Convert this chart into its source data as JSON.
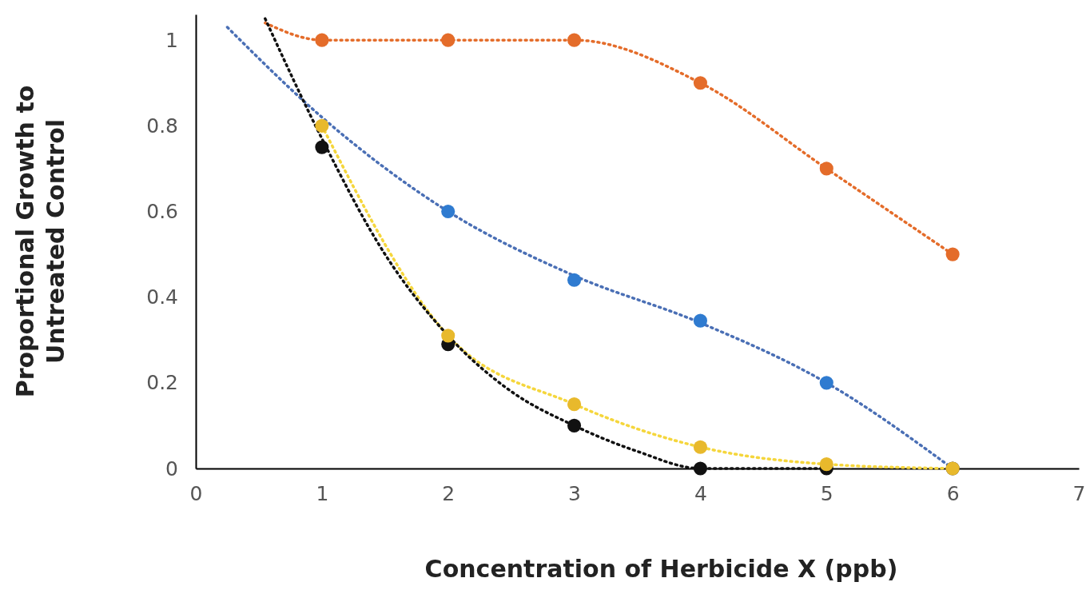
{
  "chart_data": {
    "type": "scatter",
    "xlabel": "Concentration of Herbicide X (ppb)",
    "ylabel": "Proportional Growth to\nUntreated Control",
    "xlim": [
      0,
      7
    ],
    "xticks": [
      0,
      1,
      2,
      3,
      4,
      5,
      6,
      7
    ],
    "ylim": [
      0,
      1.06
    ],
    "yticks": [
      0,
      0.2,
      0.4,
      0.6,
      0.8,
      1
    ],
    "grid": false,
    "marker": "circle",
    "series": [
      {
        "type": "line",
        "color": "#e46c2a",
        "line_style": "dotted",
        "marker": "none",
        "x": [
          0.55,
          1,
          2,
          3,
          4,
          5,
          6
        ],
        "values": [
          1.04,
          1,
          1,
          1,
          0.9,
          0.7,
          0.5
        ]
      },
      {
        "type": "line",
        "color": "#4a6fb5",
        "line_style": "dotted",
        "marker": "none",
        "x": [
          0.25,
          1,
          2,
          3,
          4,
          5,
          6
        ],
        "values": [
          1.03,
          0.82,
          0.6,
          0.45,
          0.34,
          0.2,
          0
        ]
      },
      {
        "type": "line",
        "color": "#f5d63c",
        "line_style": "dotted",
        "marker": "none",
        "x": [
          1,
          2,
          3,
          4,
          5,
          6
        ],
        "values": [
          0.8,
          0.31,
          0.15,
          0.05,
          0.01,
          0
        ]
      },
      {
        "type": "line",
        "color": "#111111",
        "line_style": "dotted",
        "marker": "none",
        "x": [
          0.55,
          1,
          1.5,
          2,
          2.5,
          3,
          3.5,
          4,
          5
        ],
        "values": [
          1.05,
          0.77,
          0.5,
          0.31,
          0.18,
          0.1,
          0.04,
          0,
          0
        ]
      },
      {
        "color": "#e46c2a",
        "x": [
          1,
          2,
          3,
          4,
          5,
          6
        ],
        "values": [
          1,
          1,
          1,
          0.9,
          0.7,
          0.5
        ]
      },
      {
        "color": "#2f7bd0",
        "x": [
          2,
          3,
          4,
          5
        ],
        "values": [
          0.6,
          0.44,
          0.345,
          0.2
        ]
      },
      {
        "color": "#111111",
        "x": [
          1,
          2,
          3,
          4,
          5,
          6
        ],
        "values": [
          0.75,
          0.29,
          0.1,
          0,
          0,
          0
        ]
      },
      {
        "color": "#e8b92c",
        "x": [
          1,
          2,
          3,
          4,
          5,
          6
        ],
        "values": [
          0.8,
          0.31,
          0.15,
          0.05,
          0.01,
          0
        ]
      }
    ]
  }
}
